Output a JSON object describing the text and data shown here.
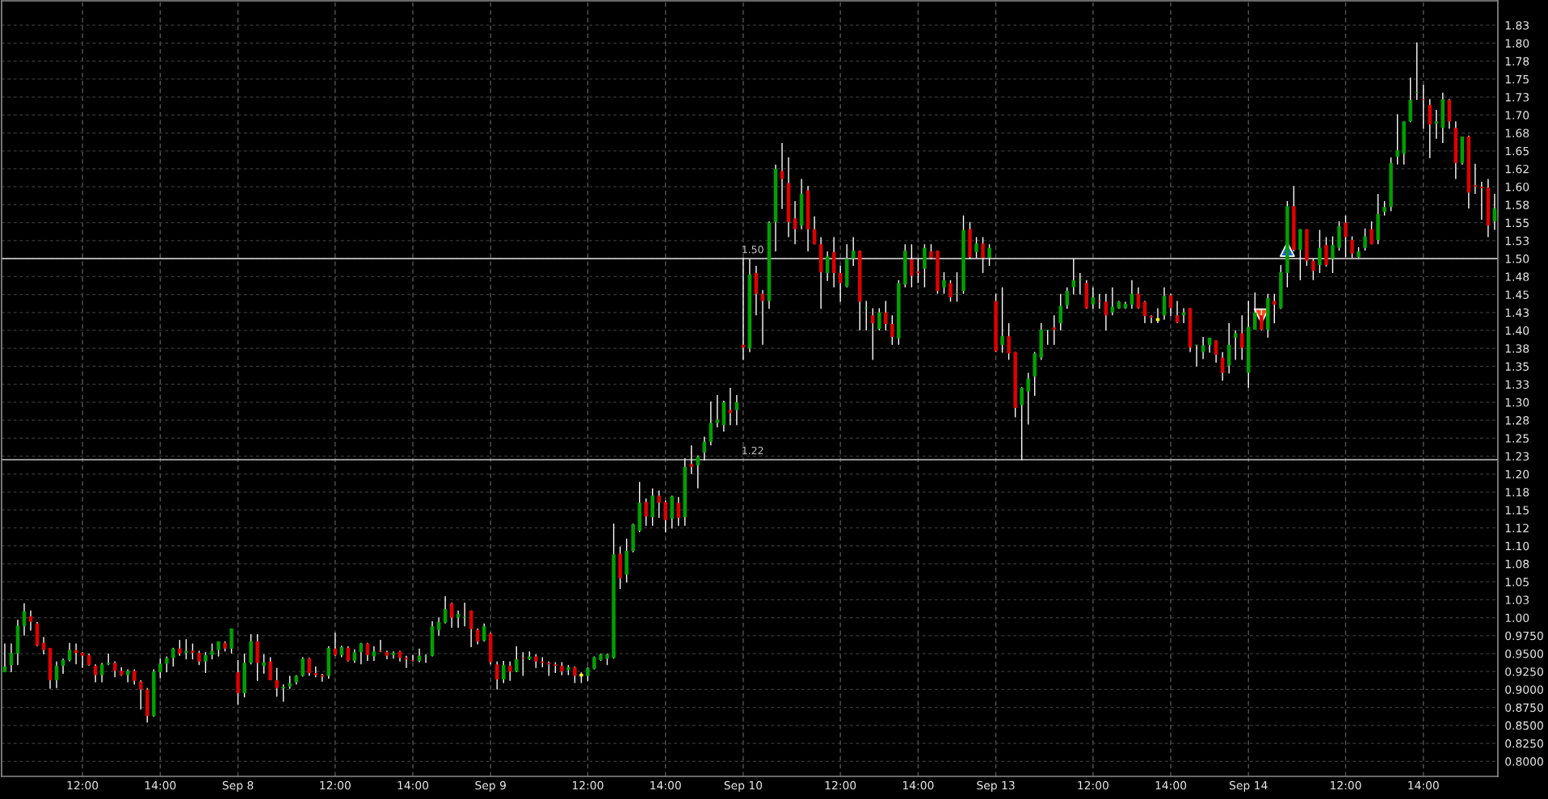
{
  "chart_data": {
    "type": "candlestick",
    "categories": [
      null,
      null,
      null,
      null,
      null,
      null,
      null,
      null,
      null,
      null,
      null,
      null,
      "12:00",
      null,
      null,
      null,
      null,
      null,
      null,
      null,
      null,
      null,
      null,
      null,
      "14:00",
      null,
      null,
      null,
      null,
      null,
      null,
      null,
      null,
      null,
      null,
      null,
      "Sep 8",
      null,
      null,
      null,
      null,
      null,
      null,
      null,
      null,
      null,
      null,
      null,
      null,
      null,
      null,
      "12:00",
      null,
      null,
      null,
      null,
      null,
      null,
      null,
      null,
      null,
      null,
      null,
      "14:00",
      null,
      null,
      null,
      null,
      null,
      null,
      null,
      null,
      null,
      null,
      null,
      "Sep 9",
      null,
      null,
      null,
      null,
      null,
      null,
      null,
      null,
      null,
      null,
      null,
      null,
      null,
      null,
      "12:00",
      null,
      null,
      null,
      null,
      null,
      null,
      null,
      null,
      null,
      null,
      null,
      "14:00",
      null,
      null,
      null,
      null,
      null,
      null,
      null,
      null,
      null,
      null,
      null,
      "Sep 10",
      null,
      null,
      null,
      null,
      null,
      null,
      null,
      null,
      null,
      null,
      null,
      null,
      null,
      null,
      "12:00",
      null,
      null,
      null,
      null,
      null,
      null,
      null,
      null,
      null,
      null,
      null,
      "14:00",
      null,
      null,
      null,
      null,
      null,
      null,
      null,
      null,
      null,
      null,
      null,
      "Sep 13",
      null,
      null,
      null,
      null,
      null,
      null,
      null,
      null,
      null,
      null,
      null,
      null,
      null,
      null,
      "12:00",
      null,
      null,
      null,
      null,
      null,
      null,
      null,
      null,
      null,
      null,
      null,
      "14:00",
      null,
      null,
      null,
      null,
      null,
      null,
      null,
      null,
      null,
      null,
      null,
      "Sep 14",
      null,
      null,
      null,
      null,
      null,
      null,
      null,
      null,
      null,
      null,
      null,
      null,
      null,
      null,
      "12:00",
      null,
      null,
      null,
      null,
      null,
      null,
      null,
      null,
      null,
      null,
      null,
      "14:00",
      null,
      null,
      null,
      null,
      null,
      null,
      null,
      null,
      null,
      null,
      null
    ],
    "ohlc": [
      [
        0.924,
        0.964,
        0.924,
        0.932
      ],
      [
        0.934,
        0.964,
        0.924,
        0.951
      ],
      [
        0.95,
        0.997,
        0.934,
        0.989
      ],
      [
        0.988,
        1.02,
        0.975,
        1.009
      ],
      [
        1.002,
        1.01,
        0.982,
        0.994
      ],
      [
        0.992,
        0.994,
        0.96,
        0.961
      ],
      [
        0.965,
        0.973,
        0.949,
        0.955
      ],
      [
        0.958,
        0.958,
        0.901,
        0.913
      ],
      [
        0.913,
        0.939,
        0.902,
        0.933
      ],
      [
        0.933,
        0.943,
        0.922,
        0.941
      ],
      [
        0.941,
        0.965,
        0.939,
        0.955
      ],
      [
        0.955,
        0.964,
        0.935,
        0.951
      ],
      [
        0.951,
        0.952,
        0.93,
        0.947
      ],
      [
        0.948,
        0.95,
        0.933,
        0.934
      ],
      [
        0.933,
        0.935,
        0.91,
        0.92
      ],
      [
        0.92,
        0.937,
        0.91,
        0.935
      ],
      [
        0.935,
        0.95,
        0.934,
        0.937
      ],
      [
        0.937,
        0.939,
        0.917,
        0.926
      ],
      [
        0.926,
        0.931,
        0.919,
        0.92
      ],
      [
        0.92,
        0.928,
        0.91,
        0.926
      ],
      [
        0.926,
        0.928,
        0.907,
        0.912
      ],
      [
        0.911,
        0.913,
        0.872,
        0.9
      ],
      [
        0.9,
        0.902,
        0.854,
        0.863
      ],
      [
        0.863,
        0.928,
        0.862,
        0.925
      ],
      [
        0.924,
        0.943,
        0.916,
        0.936
      ],
      [
        0.936,
        0.946,
        0.924,
        0.944
      ],
      [
        0.944,
        0.958,
        0.932,
        0.957
      ],
      [
        0.957,
        0.969,
        0.947,
        0.95
      ],
      [
        0.951,
        0.97,
        0.942,
        0.954
      ],
      [
        0.954,
        0.964,
        0.942,
        0.951
      ],
      [
        0.951,
        0.954,
        0.934,
        0.939
      ],
      [
        0.939,
        0.952,
        0.923,
        0.948
      ],
      [
        0.948,
        0.964,
        0.942,
        0.954
      ],
      [
        0.955,
        0.967,
        0.946,
        0.967
      ],
      [
        0.965,
        0.967,
        0.953,
        0.957
      ],
      [
        0.957,
        0.985,
        0.95,
        0.985
      ],
      [
        0.924,
        0.941,
        0.879,
        0.895
      ],
      [
        0.895,
        0.95,
        0.889,
        0.937
      ],
      [
        0.937,
        0.977,
        0.935,
        0.967
      ],
      [
        0.967,
        0.977,
        0.912,
        0.937
      ],
      [
        0.933,
        0.949,
        0.922,
        0.938
      ],
      [
        0.939,
        0.945,
        0.913,
        0.913
      ],
      [
        0.913,
        0.93,
        0.89,
        0.902
      ],
      [
        0.902,
        0.907,
        0.883,
        0.904
      ],
      [
        0.904,
        0.919,
        0.901,
        0.909
      ],
      [
        0.91,
        0.92,
        0.907,
        0.919
      ],
      [
        0.919,
        0.945,
        0.918,
        0.943
      ],
      [
        0.943,
        0.944,
        0.919,
        0.923
      ],
      [
        0.923,
        0.932,
        0.917,
        0.92
      ],
      [
        0.92,
        0.922,
        0.911,
        0.918
      ],
      [
        0.919,
        0.96,
        0.915,
        0.958
      ],
      [
        0.957,
        0.979,
        0.947,
        0.948
      ],
      [
        0.948,
        0.961,
        0.945,
        0.959
      ],
      [
        0.958,
        0.96,
        0.939,
        0.94
      ],
      [
        0.94,
        0.956,
        0.937,
        0.952
      ],
      [
        0.952,
        0.965,
        0.935,
        0.964
      ],
      [
        0.964,
        0.965,
        0.94,
        0.948
      ],
      [
        0.946,
        0.96,
        0.94,
        0.953
      ],
      [
        0.954,
        0.969,
        0.952,
        0.953
      ],
      [
        0.952,
        0.954,
        0.942,
        0.947
      ],
      [
        0.948,
        0.953,
        0.943,
        0.951
      ],
      [
        0.953,
        0.954,
        0.939,
        0.944
      ],
      [
        0.944,
        0.947,
        0.93,
        0.942
      ],
      [
        0.941,
        0.948,
        0.939,
        0.94
      ],
      [
        0.94,
        0.957,
        0.938,
        0.947
      ],
      [
        0.946,
        0.949,
        0.937,
        0.947
      ],
      [
        0.947,
        0.995,
        0.946,
        0.988
      ],
      [
        0.983,
        1.0,
        0.975,
        0.994
      ],
      [
        0.993,
        1.03,
        0.992,
        1.012
      ],
      [
        1.02,
        1.021,
        0.986,
        1.0
      ],
      [
        1.0,
        1.01,
        0.986,
        1.005
      ],
      [
        1.0,
        1.021,
        0.988,
        1.001
      ],
      [
        1.01,
        1.01,
        0.959,
        0.984
      ],
      [
        0.983,
        0.985,
        0.963,
        0.967
      ],
      [
        0.968,
        0.992,
        0.967,
        0.988
      ],
      [
        0.978,
        0.979,
        0.935,
        0.938
      ],
      [
        0.935,
        0.939,
        0.9,
        0.914
      ],
      [
        0.914,
        0.94,
        0.909,
        0.934
      ],
      [
        0.933,
        0.939,
        0.912,
        0.925
      ],
      [
        0.925,
        0.96,
        0.924,
        0.942
      ],
      [
        0.944,
        0.952,
        0.919,
        0.943
      ],
      [
        0.942,
        0.953,
        0.941,
        0.946
      ],
      [
        0.946,
        0.949,
        0.93,
        0.939
      ],
      [
        0.939,
        0.945,
        0.931,
        0.937
      ],
      [
        0.937,
        0.939,
        0.919,
        0.935
      ],
      [
        0.935,
        0.938,
        0.923,
        0.933
      ],
      [
        0.933,
        0.938,
        0.92,
        0.925
      ],
      [
        0.927,
        0.934,
        0.92,
        0.931
      ],
      [
        0.931,
        0.932,
        0.909,
        0.919
      ],
      [
        0.92,
        0.924,
        0.909,
        0.92
      ],
      [
        0.919,
        0.931,
        0.912,
        0.93
      ],
      [
        0.929,
        0.946,
        0.928,
        0.945
      ],
      [
        0.941,
        0.95,
        0.94,
        0.949
      ],
      [
        0.943,
        0.95,
        0.934,
        0.949
      ],
      [
        0.944,
        1.131,
        0.943,
        1.088
      ],
      [
        1.089,
        1.099,
        1.04,
        1.055
      ],
      [
        1.06,
        1.11,
        1.049,
        1.093
      ],
      [
        1.093,
        1.131,
        1.091,
        1.13
      ],
      [
        1.121,
        1.189,
        1.119,
        1.16
      ],
      [
        1.161,
        1.166,
        1.128,
        1.141
      ],
      [
        1.14,
        1.18,
        1.128,
        1.17
      ],
      [
        1.17,
        1.177,
        1.139,
        1.16
      ],
      [
        1.161,
        1.163,
        1.119,
        1.136
      ],
      [
        1.138,
        1.17,
        1.124,
        1.169
      ],
      [
        1.16,
        1.168,
        1.128,
        1.139
      ],
      [
        1.14,
        1.222,
        1.128,
        1.21
      ],
      [
        1.214,
        1.24,
        1.2,
        1.21
      ],
      [
        1.212,
        1.226,
        1.18,
        1.224
      ],
      [
        1.23,
        1.252,
        1.219,
        1.245
      ],
      [
        1.245,
        1.301,
        1.24,
        1.271
      ],
      [
        1.271,
        1.31,
        1.265,
        1.276
      ],
      [
        1.268,
        1.302,
        1.259,
        1.3
      ],
      [
        1.289,
        1.32,
        1.268,
        1.285
      ],
      [
        1.289,
        1.31,
        1.268,
        1.3
      ],
      [
        1.38,
        1.501,
        1.359,
        1.376
      ],
      [
        1.375,
        1.499,
        1.37,
        1.478
      ],
      [
        1.48,
        1.49,
        1.421,
        1.451
      ],
      [
        1.451,
        1.456,
        1.38,
        1.441
      ],
      [
        1.441,
        1.552,
        1.43,
        1.55
      ],
      [
        1.551,
        1.631,
        1.51,
        1.625
      ],
      [
        1.622,
        1.661,
        1.569,
        1.611
      ],
      [
        1.605,
        1.641,
        1.53,
        1.551
      ],
      [
        1.556,
        1.58,
        1.52,
        1.541
      ],
      [
        1.546,
        1.611,
        1.541,
        1.59
      ],
      [
        1.595,
        1.601,
        1.51,
        1.541
      ],
      [
        1.541,
        1.559,
        1.52,
        1.52
      ],
      [
        1.52,
        1.53,
        1.43,
        1.481
      ],
      [
        1.48,
        1.51,
        1.469,
        1.503
      ],
      [
        1.509,
        1.53,
        1.46,
        1.48
      ],
      [
        1.48,
        1.49,
        1.44,
        1.466
      ],
      [
        1.461,
        1.52,
        1.46,
        1.5
      ],
      [
        1.5,
        1.53,
        1.49,
        1.511
      ],
      [
        1.511,
        1.511,
        1.4,
        1.44
      ],
      [
        1.431,
        1.441,
        1.4,
        1.432
      ],
      [
        1.421,
        1.431,
        1.359,
        1.41
      ],
      [
        1.402,
        1.431,
        1.4,
        1.425
      ],
      [
        1.425,
        1.441,
        1.4,
        1.409
      ],
      [
        1.409,
        1.421,
        1.38,
        1.391
      ],
      [
        1.389,
        1.47,
        1.38,
        1.466
      ],
      [
        1.464,
        1.52,
        1.46,
        1.511
      ],
      [
        1.499,
        1.52,
        1.46,
        1.476
      ],
      [
        1.482,
        1.5,
        1.466,
        1.48
      ],
      [
        1.486,
        1.52,
        1.46,
        1.515
      ],
      [
        1.51,
        1.52,
        1.499,
        1.501
      ],
      [
        1.511,
        1.511,
        1.451,
        1.455
      ],
      [
        1.46,
        1.481,
        1.451,
        1.47
      ],
      [
        1.466,
        1.47,
        1.44,
        1.446
      ],
      [
        1.451,
        1.481,
        1.44,
        1.452
      ],
      [
        1.455,
        1.56,
        1.451,
        1.54
      ],
      [
        1.541,
        1.551,
        1.499,
        1.502
      ],
      [
        1.509,
        1.53,
        1.501,
        1.521
      ],
      [
        1.521,
        1.53,
        1.48,
        1.501
      ],
      [
        1.501,
        1.52,
        1.49,
        1.515
      ],
      [
        1.441,
        1.451,
        1.37,
        1.371
      ],
      [
        1.38,
        1.46,
        1.369,
        1.392
      ],
      [
        1.392,
        1.41,
        1.359,
        1.368
      ],
      [
        1.37,
        1.37,
        1.279,
        1.292
      ],
      [
        1.296,
        1.321,
        1.219,
        1.32
      ],
      [
        1.315,
        1.341,
        1.269,
        1.333
      ],
      [
        1.336,
        1.37,
        1.309,
        1.368
      ],
      [
        1.362,
        1.41,
        1.359,
        1.401
      ],
      [
        1.4,
        1.401,
        1.38,
        1.401
      ],
      [
        1.404,
        1.421,
        1.38,
        1.401
      ],
      [
        1.41,
        1.451,
        1.4,
        1.434
      ],
      [
        1.435,
        1.46,
        1.43,
        1.455
      ],
      [
        1.46,
        1.5,
        1.45,
        1.47
      ],
      [
        1.47,
        1.48,
        1.45,
        1.471
      ],
      [
        1.466,
        1.47,
        1.43,
        1.431
      ],
      [
        1.436,
        1.46,
        1.43,
        1.446
      ],
      [
        1.441,
        1.451,
        1.43,
        1.44
      ],
      [
        1.44,
        1.451,
        1.4,
        1.421
      ],
      [
        1.425,
        1.46,
        1.421,
        1.433
      ],
      [
        1.431,
        1.441,
        1.43,
        1.44
      ],
      [
        1.431,
        1.44,
        1.43,
        1.437
      ],
      [
        1.436,
        1.47,
        1.43,
        1.451
      ],
      [
        1.451,
        1.46,
        1.43,
        1.431
      ],
      [
        1.44,
        1.441,
        1.41,
        1.42
      ],
      [
        1.42,
        1.421,
        1.41,
        1.418
      ],
      [
        1.415,
        1.431,
        1.41,
        1.415
      ],
      [
        1.421,
        1.46,
        1.415,
        1.448
      ],
      [
        1.449,
        1.451,
        1.42,
        1.431
      ],
      [
        1.421,
        1.441,
        1.41,
        1.411
      ],
      [
        1.421,
        1.431,
        1.41,
        1.425
      ],
      [
        1.431,
        1.431,
        1.37,
        1.376
      ],
      [
        1.379,
        1.38,
        1.35,
        1.38
      ],
      [
        1.37,
        1.391,
        1.36,
        1.379
      ],
      [
        1.38,
        1.39,
        1.369,
        1.39
      ],
      [
        1.386,
        1.386,
        1.355,
        1.366
      ],
      [
        1.362,
        1.37,
        1.33,
        1.341
      ],
      [
        1.351,
        1.41,
        1.34,
        1.38
      ],
      [
        1.39,
        1.4,
        1.359,
        1.396
      ],
      [
        1.396,
        1.421,
        1.359,
        1.376
      ],
      [
        1.341,
        1.441,
        1.32,
        1.405
      ],
      [
        1.401,
        1.453,
        1.401,
        1.425
      ],
      [
        1.421,
        1.43,
        1.4,
        1.401
      ],
      [
        1.401,
        1.451,
        1.39,
        1.445
      ],
      [
        1.441,
        1.451,
        1.41,
        1.436
      ],
      [
        1.431,
        1.491,
        1.43,
        1.481
      ],
      [
        1.48,
        1.58,
        1.46,
        1.573
      ],
      [
        1.573,
        1.601,
        1.51,
        1.512
      ],
      [
        1.512,
        1.541,
        1.47,
        1.541
      ],
      [
        1.541,
        1.541,
        1.49,
        1.497
      ],
      [
        1.497,
        1.5,
        1.47,
        1.483
      ],
      [
        1.491,
        1.54,
        1.48,
        1.515
      ],
      [
        1.519,
        1.53,
        1.489,
        1.491
      ],
      [
        1.5,
        1.531,
        1.48,
        1.519
      ],
      [
        1.515,
        1.552,
        1.511,
        1.545
      ],
      [
        1.55,
        1.56,
        1.502,
        1.53
      ],
      [
        1.526,
        1.531,
        1.501,
        1.507
      ],
      [
        1.502,
        1.516,
        1.501,
        1.51
      ],
      [
        1.515,
        1.542,
        1.511,
        1.531
      ],
      [
        1.541,
        1.552,
        1.52,
        1.52
      ],
      [
        1.526,
        1.59,
        1.52,
        1.562
      ],
      [
        1.565,
        1.58,
        1.56,
        1.572
      ],
      [
        1.572,
        1.641,
        1.566,
        1.633
      ],
      [
        1.642,
        1.701,
        1.631,
        1.651
      ],
      [
        1.646,
        1.691,
        1.631,
        1.691
      ],
      [
        1.691,
        1.752,
        1.69,
        1.721
      ],
      [
        1.731,
        1.801,
        1.721,
        1.732
      ],
      [
        1.722,
        1.742,
        1.681,
        1.721
      ],
      [
        1.714,
        1.722,
        1.64,
        1.687
      ],
      [
        1.688,
        1.707,
        1.667,
        1.691
      ],
      [
        1.682,
        1.731,
        1.661,
        1.722
      ],
      [
        1.721,
        1.722,
        1.681,
        1.691
      ],
      [
        1.682,
        1.691,
        1.611,
        1.633
      ],
      [
        1.633,
        1.67,
        1.631,
        1.67
      ],
      [
        1.67,
        1.671,
        1.57,
        1.592
      ],
      [
        1.602,
        1.632,
        1.59,
        1.6
      ],
      [
        1.6,
        1.607,
        1.554,
        1.598
      ],
      [
        1.599,
        1.611,
        1.53,
        1.546
      ],
      [
        1.552,
        1.59,
        1.54,
        1.57
      ]
    ],
    "series": [
      {
        "type": "scatter",
        "color": "#ff4a1a",
        "marker": "triangle_down",
        "values": [
          null,
          null,
          null,
          null,
          null,
          null,
          null,
          null,
          null,
          null,
          null,
          null,
          null,
          null,
          null,
          null,
          null,
          null,
          null,
          null,
          null,
          null,
          null,
          null,
          null,
          null,
          null,
          null,
          null,
          null,
          null,
          null,
          null,
          null,
          null,
          null,
          null,
          null,
          null,
          null,
          null,
          null,
          null,
          null,
          null,
          null,
          null,
          null,
          null,
          null,
          null,
          null,
          null,
          null,
          null,
          null,
          null,
          null,
          null,
          null,
          null,
          null,
          null,
          null,
          null,
          null,
          null,
          null,
          null,
          null,
          null,
          null,
          null,
          null,
          null,
          null,
          null,
          null,
          null,
          null,
          null,
          null,
          null,
          null,
          null,
          null,
          null,
          null,
          null,
          null,
          null,
          null,
          null,
          null,
          null,
          null,
          null,
          null,
          null,
          null,
          null,
          null,
          null,
          null,
          null,
          null,
          null,
          null,
          null,
          null,
          null,
          null,
          null,
          null,
          null,
          null,
          null,
          null,
          null,
          null,
          null,
          null,
          null,
          null,
          null,
          null,
          null,
          null,
          null,
          null,
          null,
          null,
          null,
          null,
          null,
          null,
          null,
          null,
          null,
          null,
          null,
          null,
          null,
          null,
          null,
          null,
          null,
          null,
          null,
          null,
          null,
          null,
          null,
          null,
          null,
          null,
          null,
          null,
          null,
          null,
          null,
          null,
          null,
          null,
          null,
          null,
          null,
          null,
          null,
          null,
          null,
          null,
          null,
          null,
          null,
          null,
          null,
          null,
          null,
          null,
          null,
          null,
          null,
          null,
          null,
          null,
          null,
          null,
          null,
          null,
          null,
          null,
          null,
          null,
          1.42,
          null,
          null,
          null,
          null,
          null,
          null,
          null,
          null,
          null,
          null,
          null,
          null,
          null,
          null,
          null,
          null,
          null,
          null,
          null,
          null,
          null,
          null,
          null,
          null,
          null,
          null,
          null,
          null,
          null,
          null,
          null,
          null,
          null,
          null,
          null,
          null
        ]
      },
      {
        "type": "scatter",
        "color": "#1f5cff",
        "marker": "triangle",
        "values": [
          null,
          null,
          null,
          null,
          null,
          null,
          null,
          null,
          null,
          null,
          null,
          null,
          null,
          null,
          null,
          null,
          null,
          null,
          null,
          null,
          null,
          null,
          null,
          null,
          null,
          null,
          null,
          null,
          null,
          null,
          null,
          null,
          null,
          null,
          null,
          null,
          null,
          null,
          null,
          null,
          null,
          null,
          null,
          null,
          null,
          null,
          null,
          null,
          null,
          null,
          null,
          null,
          null,
          null,
          null,
          null,
          null,
          null,
          null,
          null,
          null,
          null,
          null,
          null,
          null,
          null,
          null,
          null,
          null,
          null,
          null,
          null,
          null,
          null,
          null,
          null,
          null,
          null,
          null,
          null,
          null,
          null,
          null,
          null,
          null,
          null,
          null,
          null,
          null,
          null,
          null,
          null,
          null,
          null,
          null,
          null,
          null,
          null,
          null,
          null,
          null,
          null,
          null,
          null,
          null,
          null,
          null,
          null,
          null,
          null,
          null,
          null,
          null,
          null,
          null,
          null,
          null,
          null,
          null,
          null,
          null,
          null,
          null,
          null,
          null,
          null,
          null,
          null,
          null,
          null,
          null,
          null,
          null,
          null,
          null,
          null,
          null,
          null,
          null,
          null,
          null,
          null,
          null,
          null,
          null,
          null,
          null,
          null,
          null,
          null,
          null,
          null,
          null,
          null,
          null,
          null,
          null,
          null,
          null,
          null,
          null,
          null,
          null,
          null,
          null,
          null,
          null,
          null,
          null,
          null,
          null,
          null,
          null,
          null,
          null,
          null,
          null,
          null,
          null,
          null,
          null,
          null,
          null,
          null,
          null,
          null,
          null,
          null,
          null,
          null,
          null,
          null,
          null,
          null,
          null,
          null,
          null,
          null,
          1.513,
          null,
          null,
          null,
          null,
          null,
          null,
          null,
          null,
          null,
          null,
          null,
          null,
          null,
          null,
          null,
          null,
          null,
          null,
          null,
          null,
          null,
          null,
          null,
          null,
          null,
          null,
          null,
          null,
          null,
          null,
          null,
          null
        ]
      }
    ],
    "ylim": [
      0.779,
      1.859
    ],
    "yticks": [
      {
        "value": 0.8,
        "label": "0.8000"
      },
      {
        "value": 0.825,
        "label": "0.8250"
      },
      {
        "value": 0.85,
        "label": "0.8500"
      },
      {
        "value": 0.875,
        "label": "0.8750"
      },
      {
        "value": 0.9,
        "label": "0.9000"
      },
      {
        "value": 0.925,
        "label": "0.9250"
      },
      {
        "value": 0.95,
        "label": "0.9500"
      },
      {
        "value": 0.975,
        "label": "0.9750"
      },
      {
        "value": 1.0,
        "label": "1.00"
      },
      {
        "value": 1.025,
        "label": "1.03"
      },
      {
        "value": 1.05,
        "label": "1.05"
      },
      {
        "value": 1.075,
        "label": "1.08"
      },
      {
        "value": 1.1,
        "label": "1.10"
      },
      {
        "value": 1.125,
        "label": "1.12"
      },
      {
        "value": 1.15,
        "label": "1.15"
      },
      {
        "value": 1.175,
        "label": "1.18"
      },
      {
        "value": 1.2,
        "label": "1.20"
      },
      {
        "value": 1.225,
        "label": "1.23"
      },
      {
        "value": 1.25,
        "label": "1.25"
      },
      {
        "value": 1.275,
        "label": "1.28"
      },
      {
        "value": 1.3,
        "label": "1.30"
      },
      {
        "value": 1.325,
        "label": "1.33"
      },
      {
        "value": 1.35,
        "label": "1.35"
      },
      {
        "value": 1.375,
        "label": "1.38"
      },
      {
        "value": 1.4,
        "label": "1.40"
      },
      {
        "value": 1.425,
        "label": "1.43"
      },
      {
        "value": 1.45,
        "label": "1.45"
      },
      {
        "value": 1.475,
        "label": "1.48"
      },
      {
        "value": 1.5,
        "label": "1.50"
      },
      {
        "value": 1.525,
        "label": "1.53"
      },
      {
        "value": 1.55,
        "label": "1.55"
      },
      {
        "value": 1.575,
        "label": "1.58"
      },
      {
        "value": 1.6,
        "label": "1.60"
      },
      {
        "value": 1.625,
        "label": "1.62"
      },
      {
        "value": 1.65,
        "label": "1.65"
      },
      {
        "value": 1.675,
        "label": "1.68"
      },
      {
        "value": 1.7,
        "label": "1.70"
      },
      {
        "value": 1.725,
        "label": "1.73"
      },
      {
        "value": 1.75,
        "label": "1.75"
      },
      {
        "value": 1.775,
        "label": "1.78"
      },
      {
        "value": 1.8,
        "label": "1.80"
      },
      {
        "value": 1.825,
        "label": "1.83"
      }
    ],
    "grid": true,
    "ref_lines": [
      {
        "axis": "y",
        "value": 1.5,
        "label": "1.50",
        "color": "#c4c4c4",
        "line_style": "solid"
      },
      {
        "axis": "y",
        "value": 1.22,
        "label": "1.22",
        "color": "#c4c4c4",
        "line_style": "solid"
      }
    ]
  }
}
